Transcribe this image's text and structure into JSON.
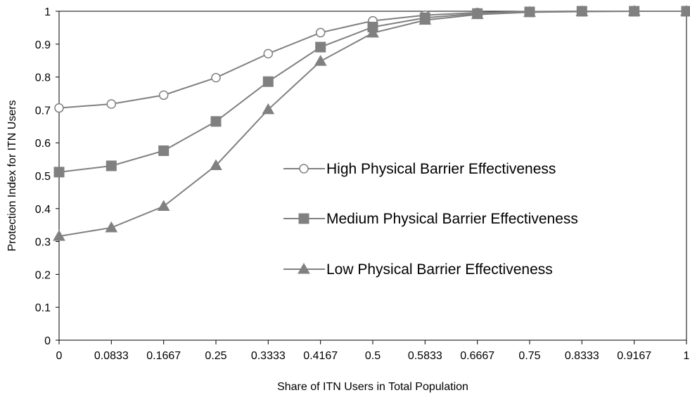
{
  "chart_data": {
    "type": "line",
    "title": "",
    "xlabel": "Share of ITN Users in Total Population",
    "ylabel": "Protection Index for ITN Users",
    "x": [
      0,
      0.0833,
      0.1667,
      0.25,
      0.3333,
      0.4167,
      0.5,
      0.5833,
      0.6667,
      0.75,
      0.8333,
      0.9167,
      1
    ],
    "x_tick_labels": [
      "0",
      "0.0833",
      "0.1667",
      "0.25",
      "0.3333",
      "0.4167",
      "0.5",
      "0.5833",
      "0.6667",
      "0.75",
      "0.8333",
      "0.9167",
      "1"
    ],
    "ylim": [
      0,
      1
    ],
    "y_ticks": [
      0,
      0.1,
      0.2,
      0.3,
      0.4,
      0.5,
      0.6,
      0.7,
      0.8,
      0.9,
      1
    ],
    "y_tick_labels": [
      "0",
      "0.1",
      "0.2",
      "0.3",
      "0.4",
      "0.5",
      "0.6",
      "0.7",
      "0.8",
      "0.9",
      "1"
    ],
    "grid": false,
    "legend_position": "center-right",
    "line_color": "#808080",
    "series": [
      {
        "name": "High  Physical Barrier Effectiveness",
        "marker": "circle-open",
        "values": [
          0.706,
          0.718,
          0.745,
          0.798,
          0.871,
          0.935,
          0.971,
          0.988,
          0.996,
          0.999,
          1.0,
          1.0,
          1.0
        ]
      },
      {
        "name": "Medium  Physical Barrier Effectiveness",
        "marker": "square-filled",
        "values": [
          0.511,
          0.53,
          0.576,
          0.665,
          0.786,
          0.891,
          0.952,
          0.98,
          0.993,
          0.998,
          1.0,
          1.0,
          1.0
        ]
      },
      {
        "name": "Low  Physical Barrier Effectiveness",
        "marker": "triangle-filled",
        "values": [
          0.316,
          0.342,
          0.407,
          0.531,
          0.701,
          0.848,
          0.934,
          0.973,
          0.99,
          0.997,
          0.999,
          1.0,
          1.0
        ]
      }
    ]
  }
}
